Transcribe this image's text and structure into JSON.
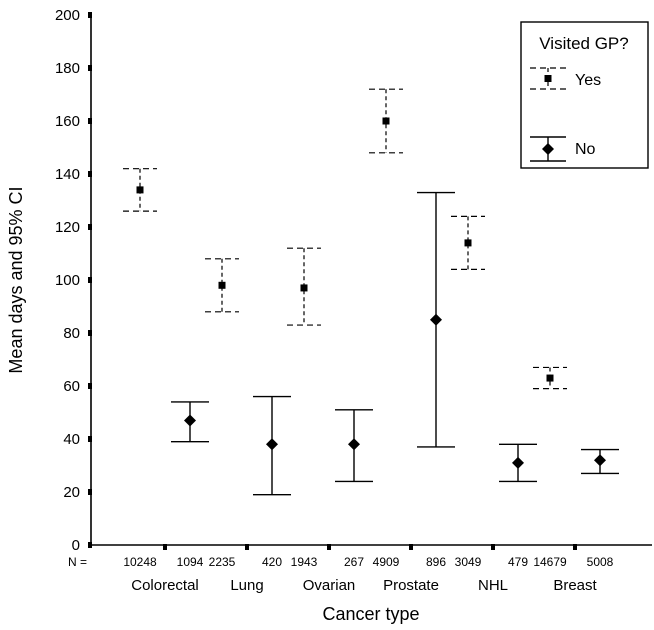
{
  "chart_data": {
    "type": "scatter",
    "subtype": "error-bar",
    "title": "",
    "xlabel": "Cancer type",
    "ylabel": "Mean days and 95% CI",
    "ylim": [
      0,
      200
    ],
    "yticks": [
      0,
      20,
      40,
      60,
      80,
      100,
      120,
      140,
      160,
      180,
      200
    ],
    "n_prefix": "N =",
    "categories": [
      "Colorectal",
      "Lung",
      "Ovarian",
      "Prostate",
      "NHL",
      "Breast"
    ],
    "legend": {
      "title": "Visited GP?",
      "position": "top-right"
    },
    "series": [
      {
        "name": "Yes",
        "marker": "square",
        "line_style": "dashed",
        "n": [
          "10248",
          "2235",
          "1943",
          "4909",
          "3049",
          "14679"
        ],
        "mean": [
          134,
          98,
          97,
          160,
          114,
          63
        ],
        "ci_low": [
          126,
          88,
          83,
          148,
          104,
          59
        ],
        "ci_high": [
          142,
          108,
          112,
          172,
          124,
          67
        ]
      },
      {
        "name": "No",
        "marker": "diamond",
        "line_style": "solid",
        "n": [
          "1094",
          "420",
          "267",
          "896",
          "479",
          "5008"
        ],
        "mean": [
          47,
          38,
          38,
          85,
          31,
          32
        ],
        "ci_low": [
          39,
          19,
          24,
          37,
          24,
          27
        ],
        "ci_high": [
          54,
          56,
          51,
          133,
          38,
          36
        ]
      }
    ]
  }
}
